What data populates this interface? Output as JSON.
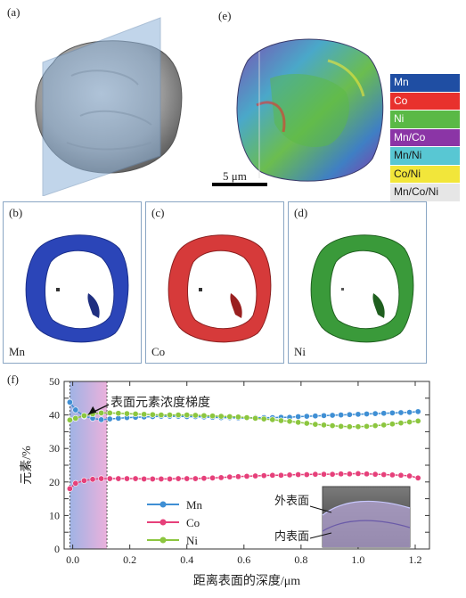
{
  "panels": {
    "a": "(a)",
    "b": "(b)",
    "c": "(c)",
    "d": "(d)",
    "e": "(e)",
    "f": "(f)"
  },
  "scale_bar": "5 μm",
  "elements": {
    "mn": "Mn",
    "co": "Co",
    "ni": "Ni"
  },
  "legend": [
    {
      "label": "Mn",
      "color": "#1f4ea3",
      "text_color": "#ffffff"
    },
    {
      "label": "Co",
      "color": "#e8312d",
      "text_color": "#ffffff"
    },
    {
      "label": "Ni",
      "color": "#5ab946",
      "text_color": "#ffffff"
    },
    {
      "label": "Mn/Co",
      "color": "#8b35a6",
      "text_color": "#ffffff"
    },
    {
      "label": "Mn/Ni",
      "color": "#58c7d3",
      "text_color": "#1a1a1a"
    },
    {
      "label": "Co/Ni",
      "color": "#f2e63a",
      "text_color": "#1a1a1a"
    },
    {
      "label": "Mn/Co/Ni",
      "color": "#e6e6e6",
      "text_color": "#1a1a1a"
    }
  ],
  "chart_data": {
    "type": "line",
    "xlabel": "距离表面的深度/μm",
    "ylabel": "元素/%",
    "xlim": [
      -0.03,
      1.25
    ],
    "ylim": [
      0,
      50
    ],
    "xticks": [
      0.0,
      0.2,
      0.4,
      0.6,
      0.8,
      1.0,
      1.2
    ],
    "yticks": [
      0,
      5,
      10,
      15,
      20,
      25,
      30,
      35,
      40,
      45,
      50
    ],
    "highlight_region": [
      -0.01,
      0.12
    ],
    "annotations": {
      "gradient": "表面元素浓度梯度",
      "outer": "外表面",
      "inner": "内表面"
    },
    "x": [
      -0.01,
      0.01,
      0.04,
      0.07,
      0.1,
      0.13,
      0.16,
      0.19,
      0.22,
      0.25,
      0.28,
      0.31,
      0.34,
      0.37,
      0.4,
      0.43,
      0.46,
      0.49,
      0.52,
      0.55,
      0.58,
      0.61,
      0.64,
      0.67,
      0.7,
      0.73,
      0.76,
      0.79,
      0.82,
      0.85,
      0.88,
      0.91,
      0.94,
      0.97,
      1.0,
      1.03,
      1.06,
      1.09,
      1.12,
      1.15,
      1.18,
      1.21
    ],
    "series": [
      {
        "name": "Mn",
        "color": "#3f8fd4",
        "values": [
          43.8,
          41.5,
          39.6,
          39.0,
          38.6,
          38.8,
          39.0,
          39.2,
          39.3,
          39.4,
          39.5,
          39.6,
          39.6,
          39.6,
          39.5,
          39.5,
          39.4,
          39.3,
          39.2,
          39.2,
          39.1,
          39.1,
          39.2,
          39.2,
          39.2,
          39.3,
          39.3,
          39.5,
          39.6,
          39.7,
          39.8,
          39.9,
          40.0,
          40.1,
          40.2,
          40.3,
          40.4,
          40.5,
          40.6,
          40.7,
          40.8,
          41.0
        ]
      },
      {
        "name": "Co",
        "color": "#e6407a",
        "values": [
          18.0,
          19.6,
          20.4,
          20.8,
          21.0,
          21.0,
          21.0,
          21.0,
          21.0,
          20.9,
          20.9,
          20.9,
          20.9,
          21.0,
          21.0,
          21.0,
          21.1,
          21.2,
          21.3,
          21.5,
          21.6,
          21.7,
          21.8,
          21.9,
          22.0,
          22.0,
          22.1,
          22.2,
          22.2,
          22.3,
          22.3,
          22.3,
          22.4,
          22.4,
          22.5,
          22.4,
          22.3,
          22.2,
          22.1,
          22.0,
          21.8,
          21.2
        ]
      },
      {
        "name": "Ni",
        "color": "#8cc63f",
        "values": [
          38.5,
          39.0,
          39.8,
          40.3,
          40.6,
          40.6,
          40.5,
          40.4,
          40.3,
          40.2,
          40.1,
          40.0,
          40.0,
          40.0,
          40.0,
          39.9,
          39.8,
          39.7,
          39.6,
          39.5,
          39.4,
          39.2,
          39.0,
          38.8,
          38.6,
          38.3,
          38.1,
          37.8,
          37.5,
          37.2,
          37.0,
          36.8,
          36.6,
          36.5,
          36.5,
          36.6,
          36.8,
          37.0,
          37.3,
          37.6,
          37.9,
          38.2
        ]
      }
    ]
  }
}
